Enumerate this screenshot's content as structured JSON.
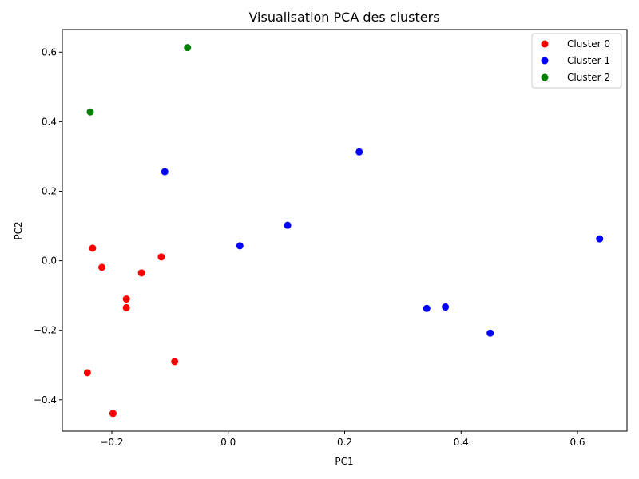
{
  "chart_data": {
    "type": "scatter",
    "title": "Visualisation PCA des clusters",
    "xlabel": "PC1",
    "ylabel": "PC2",
    "xlim": [
      -0.285,
      0.685
    ],
    "ylim": [
      -0.49,
      0.665
    ],
    "xticks": [
      -0.2,
      0.0,
      0.2,
      0.4,
      0.6
    ],
    "xtick_labels": [
      "−0.2",
      "0.0",
      "0.2",
      "0.4",
      "0.6"
    ],
    "yticks": [
      -0.4,
      -0.2,
      0.0,
      0.2,
      0.4,
      0.6
    ],
    "ytick_labels": [
      "−0.4",
      "−0.2",
      "0.0",
      "0.2",
      "0.4",
      "0.6"
    ],
    "grid": false,
    "legend_position": "top-right",
    "series": [
      {
        "name": "Cluster 0",
        "color": "#ff0000",
        "points": [
          [
            -0.233,
            0.036
          ],
          [
            -0.217,
            -0.019
          ],
          [
            -0.149,
            -0.035
          ],
          [
            -0.115,
            0.011
          ],
          [
            -0.175,
            -0.11
          ],
          [
            -0.175,
            -0.135
          ],
          [
            -0.092,
            -0.29
          ],
          [
            -0.242,
            -0.322
          ],
          [
            -0.198,
            -0.439
          ]
        ]
      },
      {
        "name": "Cluster 1",
        "color": "#0000ff",
        "points": [
          [
            -0.109,
            0.256
          ],
          [
            0.02,
            0.043
          ],
          [
            0.102,
            0.102
          ],
          [
            0.225,
            0.313
          ],
          [
            0.341,
            -0.137
          ],
          [
            0.373,
            -0.133
          ],
          [
            0.45,
            -0.208
          ],
          [
            0.638,
            0.063
          ]
        ]
      },
      {
        "name": "Cluster 2",
        "color": "#008000",
        "points": [
          [
            -0.237,
            0.428
          ],
          [
            -0.07,
            0.613
          ]
        ]
      }
    ]
  }
}
